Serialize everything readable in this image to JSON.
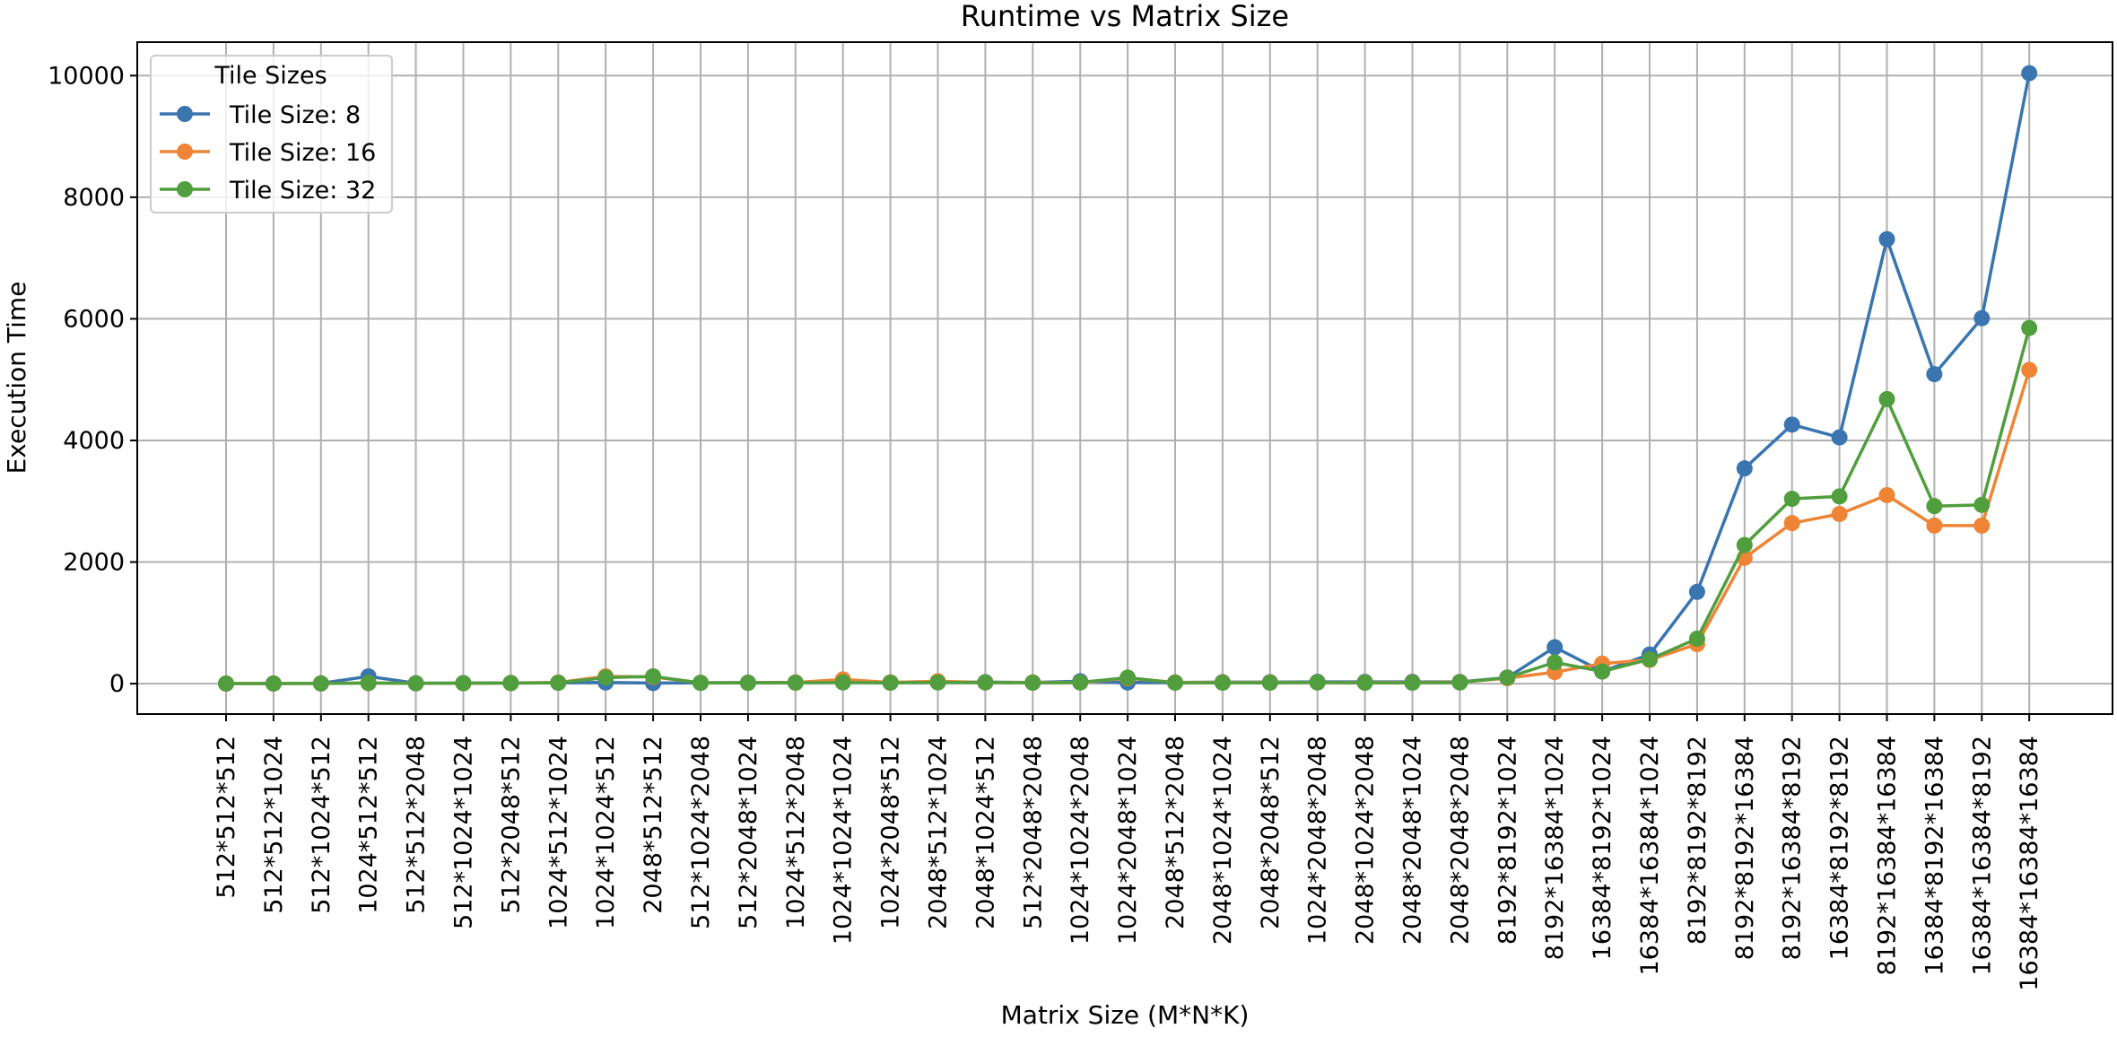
{
  "chart_data": {
    "type": "line",
    "title": "Runtime vs Matrix Size",
    "xlabel": "Matrix Size (M*N*K)",
    "ylabel": "Execution Time",
    "legend": {
      "title": "Tile Sizes",
      "position": "top-left"
    },
    "grid": true,
    "ylim": [
      -500,
      10550
    ],
    "yticks": [
      0,
      2000,
      4000,
      6000,
      8000,
      10000
    ],
    "categories": [
      "512*512*512",
      "512*512*1024",
      "512*1024*512",
      "1024*512*512",
      "512*512*2048",
      "512*1024*1024",
      "512*2048*512",
      "1024*512*1024",
      "1024*1024*512",
      "2048*512*512",
      "512*1024*2048",
      "512*2048*1024",
      "1024*512*2048",
      "1024*1024*1024",
      "1024*2048*512",
      "2048*512*1024",
      "2048*1024*512",
      "512*2048*2048",
      "1024*1024*2048",
      "1024*2048*1024",
      "2048*512*2048",
      "2048*1024*1024",
      "2048*2048*512",
      "1024*2048*2048",
      "2048*1024*2048",
      "2048*2048*1024",
      "2048*2048*2048",
      "8192*8192*1024",
      "8192*16384*1024",
      "16384*8192*1024",
      "16384*16384*1024",
      "8192*8192*8192",
      "8192*8192*16384",
      "8192*16384*8192",
      "16384*8192*8192",
      "8192*16384*16384",
      "16384*8192*16384",
      "16384*16384*8192",
      "16384*16384*16384"
    ],
    "series": [
      {
        "name": "Tile Size: 8",
        "color": "#3a75af",
        "values": [
          2,
          3,
          5,
          120,
          8,
          10,
          12,
          15,
          20,
          10,
          15,
          18,
          20,
          30,
          20,
          25,
          25,
          20,
          40,
          20,
          20,
          25,
          25,
          30,
          30,
          30,
          30,
          100,
          600,
          200,
          480,
          1510,
          3540,
          4260,
          4050,
          7310,
          5090,
          6010,
          10040
        ]
      },
      {
        "name": "Tile Size: 16",
        "color": "#ee8536",
        "values": [
          1,
          2,
          4,
          10,
          6,
          8,
          10,
          20,
          120,
          110,
          15,
          15,
          20,
          70,
          20,
          40,
          20,
          20,
          20,
          90,
          20,
          20,
          20,
          20,
          20,
          20,
          25,
          90,
          190,
          330,
          390,
          650,
          2070,
          2640,
          2790,
          3100,
          2600,
          2600,
          5160
        ]
      },
      {
        "name": "Tile Size: 32",
        "color": "#519e3e",
        "values": [
          1,
          2,
          3,
          10,
          5,
          7,
          9,
          15,
          100,
          120,
          12,
          12,
          15,
          20,
          15,
          20,
          20,
          15,
          20,
          100,
          15,
          15,
          15,
          20,
          15,
          15,
          20,
          100,
          350,
          200,
          400,
          740,
          2280,
          3040,
          3080,
          4680,
          2920,
          2940,
          5850
        ]
      }
    ]
  }
}
